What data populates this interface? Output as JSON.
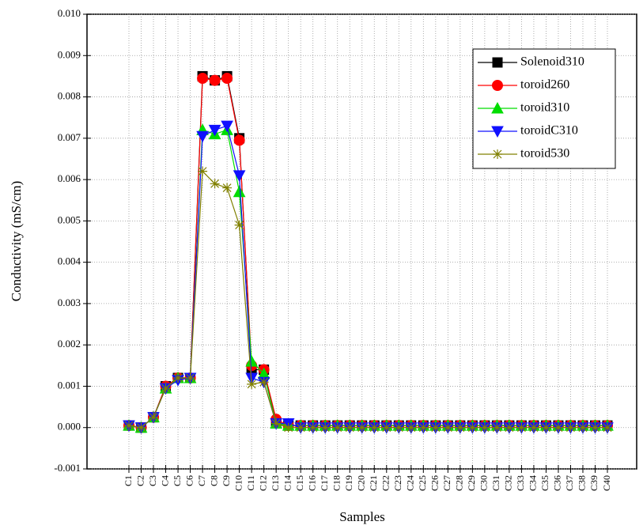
{
  "chart_data": {
    "type": "line",
    "x_label": "Samples",
    "y_label": "Conductivity (mS/cm)",
    "categories": [
      "C1",
      "C2",
      "C3",
      "C4",
      "C5",
      "C6",
      "C7",
      "C8",
      "C9",
      "C10",
      "C11",
      "C12",
      "C13",
      "C14",
      "C15",
      "C16",
      "C17",
      "C18",
      "C19",
      "C20",
      "C21",
      "C22",
      "C23",
      "C24",
      "C25",
      "C26",
      "C27",
      "C28",
      "C29",
      "C30",
      "C31",
      "C32",
      "C33",
      "C34",
      "C35",
      "C36",
      "C37",
      "C38",
      "C39",
      "C40"
    ],
    "ylim": [
      -0.001,
      0.01
    ],
    "yticks": [
      -0.001,
      {
        "value": 0,
        "label": "0.000"
      },
      0.001,
      0.002,
      0.003,
      0.004,
      0.005,
      0.006,
      0.007,
      0.008,
      0.009,
      {
        "value": 0.01,
        "label": "0.010"
      }
    ],
    "grid": true,
    "legend": "upper right",
    "series": [
      {
        "name": "Solenoid310",
        "color": "#000000",
        "marker": "square",
        "values": [
          5e-05,
          0,
          0.00025,
          0.001,
          0.0012,
          0.0012,
          0.0085,
          0.0084,
          0.0085,
          0.007,
          0.0014,
          0.0014,
          0.0001,
          5e-05,
          5e-05,
          5e-05,
          5e-05,
          5e-05,
          5e-05,
          5e-05,
          5e-05,
          5e-05,
          5e-05,
          5e-05,
          5e-05,
          5e-05,
          5e-05,
          5e-05,
          5e-05,
          5e-05,
          5e-05,
          5e-05,
          5e-05,
          5e-05,
          5e-05,
          5e-05,
          5e-05,
          5e-05,
          5e-05,
          5e-05
        ]
      },
      {
        "name": "toroid260",
        "color": "#ff0000",
        "marker": "circle",
        "values": [
          5e-05,
          0,
          0.00025,
          0.001,
          0.0012,
          0.0012,
          0.00845,
          0.0084,
          0.00845,
          0.00695,
          0.0015,
          0.0014,
          0.0002,
          5e-05,
          5e-05,
          5e-05,
          5e-05,
          5e-05,
          5e-05,
          5e-05,
          5e-05,
          5e-05,
          5e-05,
          5e-05,
          5e-05,
          5e-05,
          5e-05,
          5e-05,
          5e-05,
          5e-05,
          5e-05,
          5e-05,
          5e-05,
          5e-05,
          5e-05,
          5e-05,
          5e-05,
          5e-05,
          5e-05,
          5e-05
        ]
      },
      {
        "name": "toroid310",
        "color": "#00dd00",
        "marker": "triangle-up",
        "values": [
          5e-05,
          0,
          0.00025,
          0.00095,
          0.0012,
          0.0012,
          0.0072,
          0.0071,
          0.0072,
          0.0057,
          0.0016,
          0.0013,
          0.0001,
          5e-05,
          5e-05,
          5e-05,
          5e-05,
          5e-05,
          5e-05,
          5e-05,
          5e-05,
          5e-05,
          5e-05,
          5e-05,
          5e-05,
          5e-05,
          5e-05,
          5e-05,
          5e-05,
          5e-05,
          5e-05,
          5e-05,
          5e-05,
          5e-05,
          5e-05,
          5e-05,
          5e-05,
          5e-05,
          5e-05,
          5e-05
        ]
      },
      {
        "name": "toroidC310",
        "color": "#1010ff",
        "marker": "triangle-down",
        "values": [
          5e-05,
          0,
          0.00025,
          0.00095,
          0.00115,
          0.0012,
          0.00705,
          0.0072,
          0.0073,
          0.0061,
          0.0012,
          0.0011,
          0.0001,
          0.0001,
          0,
          0,
          0,
          0,
          0,
          0,
          0,
          0,
          0,
          0,
          0,
          0,
          0,
          0,
          0,
          0,
          0,
          0,
          0,
          0,
          0,
          0,
          0,
          0,
          0,
          0
        ]
      },
      {
        "name": "toroid530",
        "color": "#808000",
        "marker": "star",
        "values": [
          5e-05,
          0,
          0.00025,
          0.00095,
          0.0012,
          0.0012,
          0.0062,
          0.0059,
          0.0058,
          0.0049,
          0.00105,
          0.0011,
          0.0001,
          0,
          0,
          0,
          0,
          0,
          0,
          0,
          0,
          0,
          0,
          0,
          0,
          0,
          0,
          0,
          0,
          0,
          0,
          0,
          0,
          0,
          0,
          0,
          0,
          0,
          0,
          0
        ]
      }
    ]
  }
}
